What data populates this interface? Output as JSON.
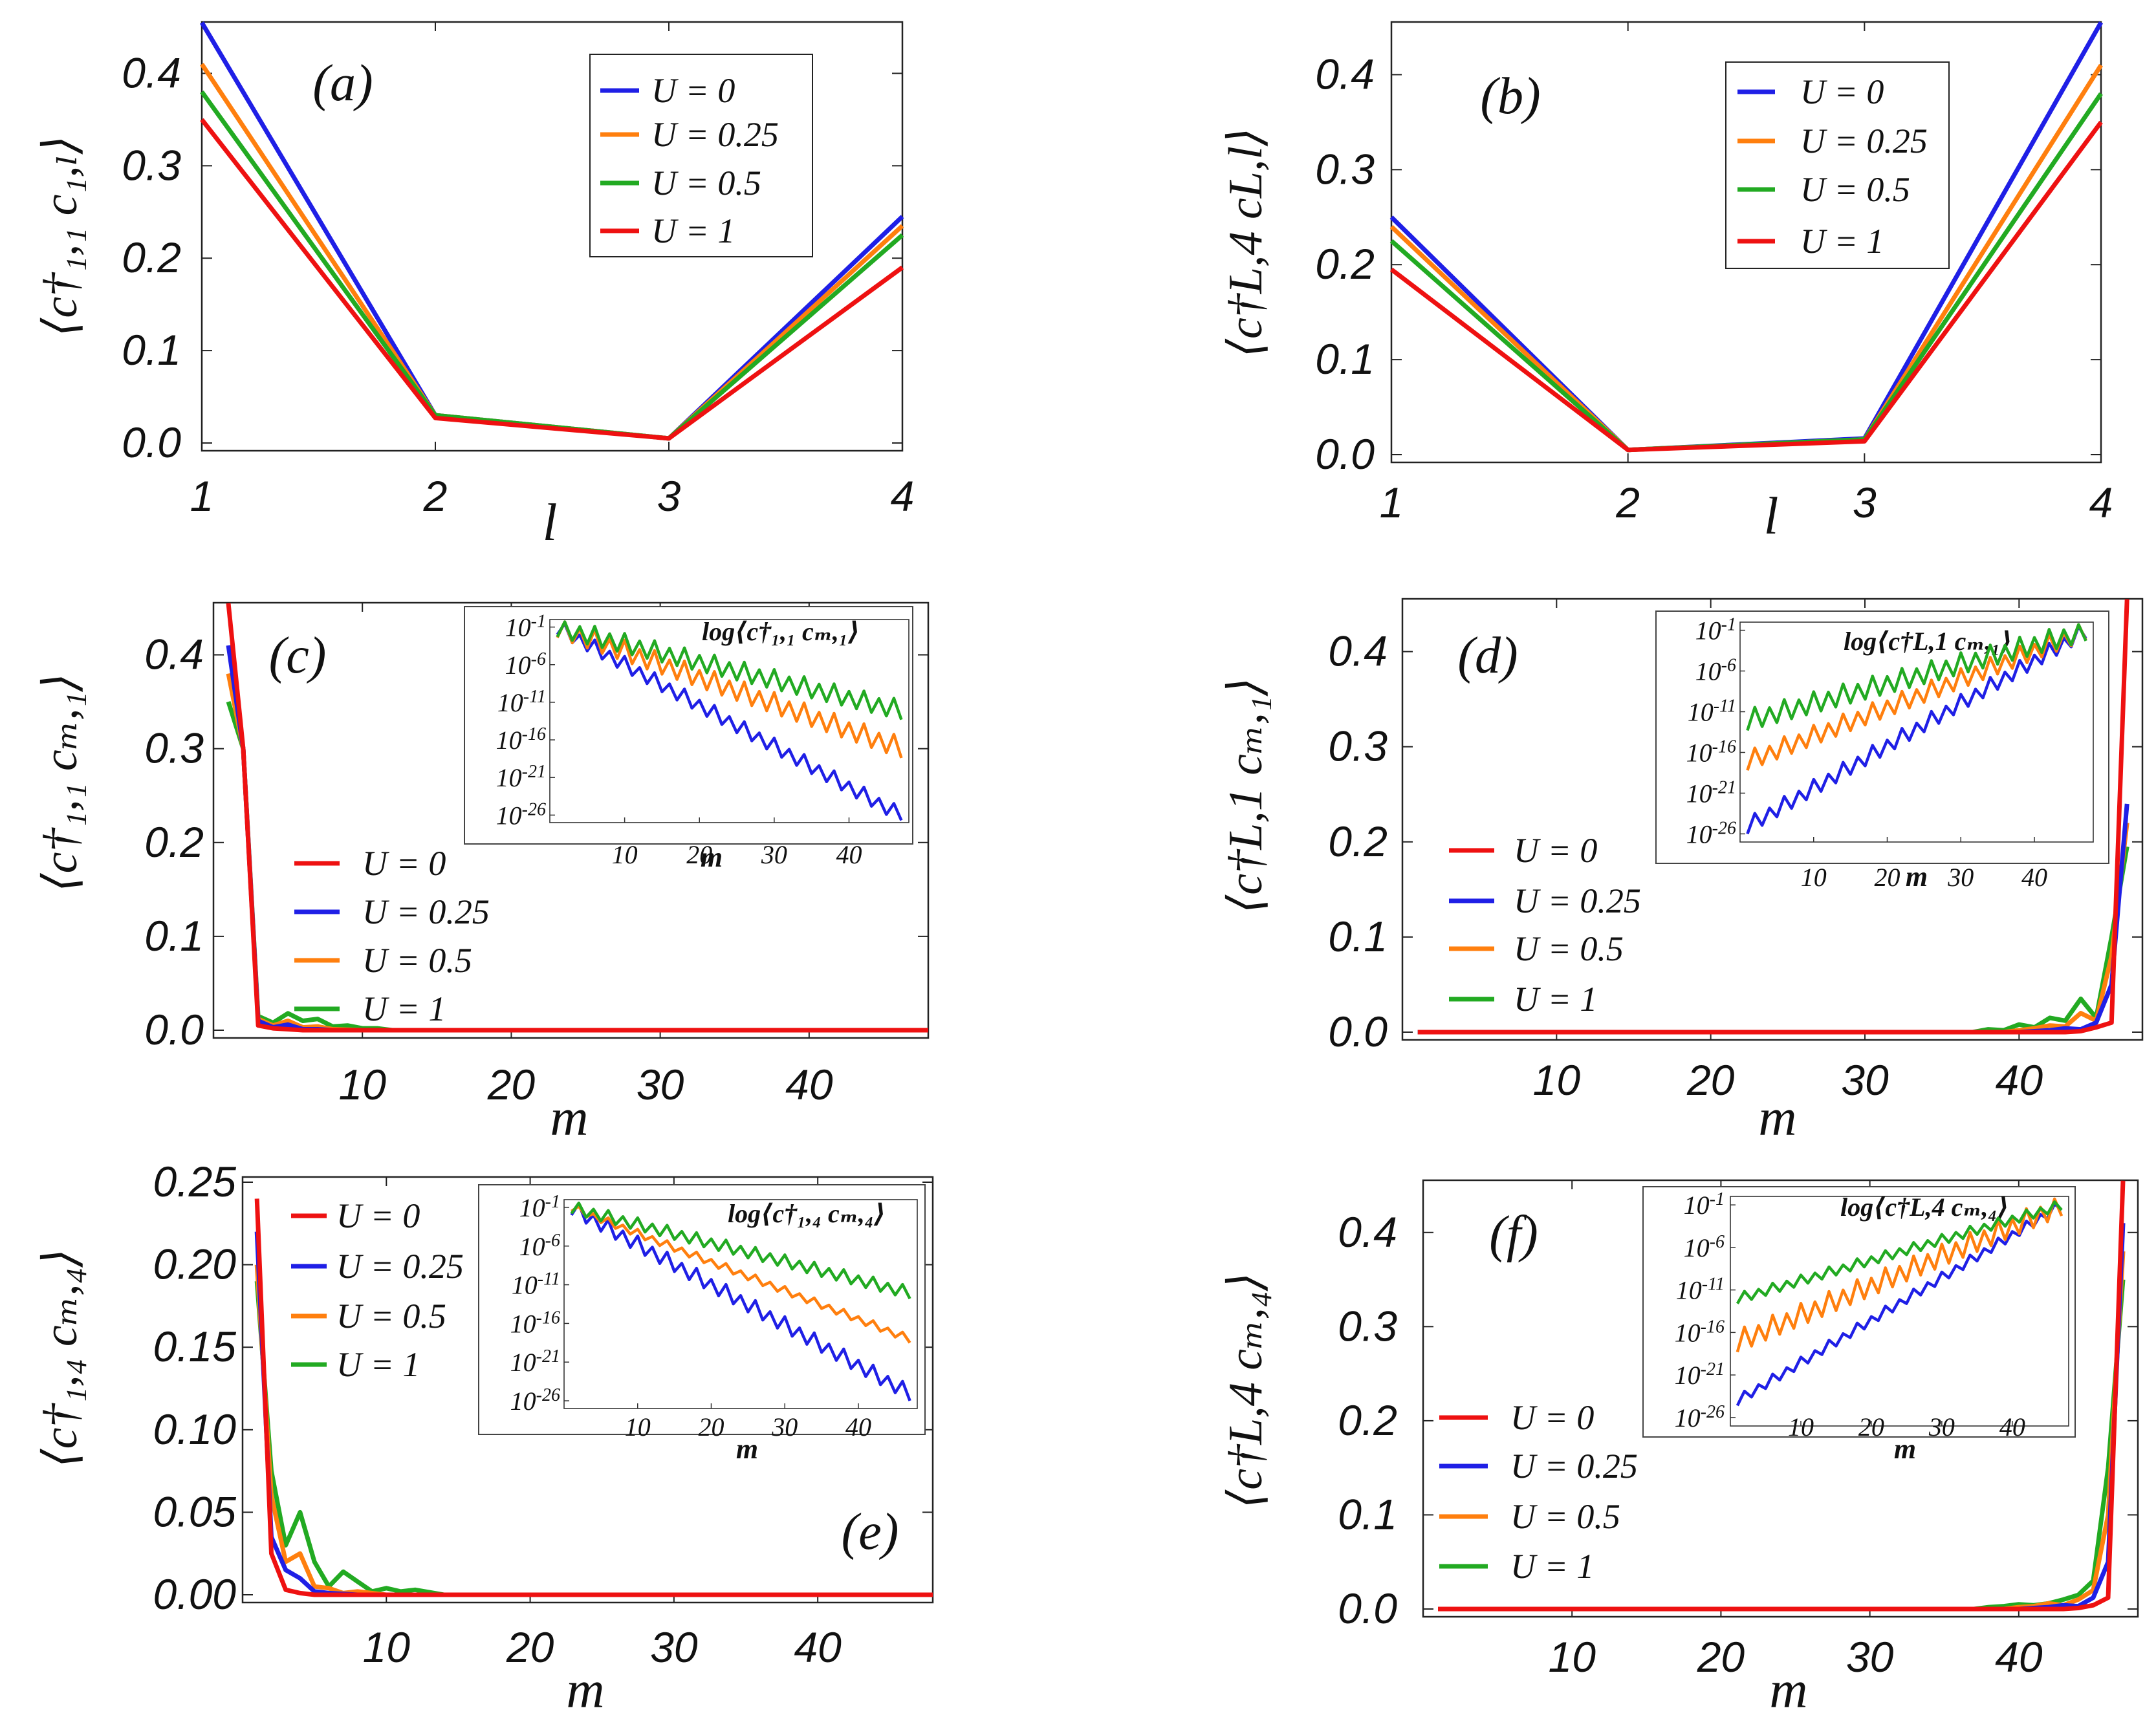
{
  "legend_colors": {
    "blue": "#1f1fe6",
    "orange": "#ff7f0e",
    "green": "#22aa22",
    "red": "#ee1111"
  },
  "chart_data": [
    {
      "id": "a",
      "type": "line",
      "panel_label": "(a)",
      "xlabel": "l",
      "ylabel": "⟨c†₁,₁ c₁,ₗ⟩",
      "xlim": [
        1,
        4
      ],
      "ylim": [
        0,
        0.45
      ],
      "xticks": [
        "1",
        "2",
        "3",
        "4"
      ],
      "yticks": [
        "0.0",
        "0.1",
        "0.2",
        "0.3",
        "0.4"
      ],
      "x": [
        1,
        2,
        3,
        4
      ],
      "series": [
        {
          "name": "U = 0",
          "color": "#1f1fe6",
          "values": [
            0.455,
            0.03,
            0.005,
            0.245
          ]
        },
        {
          "name": "U = 0.25",
          "color": "#ff7f0e",
          "values": [
            0.41,
            0.03,
            0.005,
            0.235
          ]
        },
        {
          "name": "U = 0.5",
          "color": "#22aa22",
          "values": [
            0.38,
            0.03,
            0.005,
            0.225
          ]
        },
        {
          "name": "U = 1",
          "color": "#ee1111",
          "values": [
            0.35,
            0.027,
            0.005,
            0.19
          ]
        }
      ],
      "legend_position": "top-right"
    },
    {
      "id": "b",
      "type": "line",
      "panel_label": "(b)",
      "xlabel": "l",
      "ylabel": "⟨c†L,4 cL,l⟩",
      "xlim": [
        1,
        4
      ],
      "ylim": [
        0,
        0.45
      ],
      "xticks": [
        "1",
        "2",
        "3",
        "4"
      ],
      "yticks": [
        "0.0",
        "0.1",
        "0.2",
        "0.3",
        "0.4"
      ],
      "x": [
        1,
        2,
        3,
        4
      ],
      "series": [
        {
          "name": "U = 0",
          "color": "#1f1fe6",
          "values": [
            0.25,
            0.005,
            0.017,
            0.455
          ]
        },
        {
          "name": "U = 0.25",
          "color": "#ff7f0e",
          "values": [
            0.24,
            0.005,
            0.016,
            0.41
          ]
        },
        {
          "name": "U = 0.5",
          "color": "#22aa22",
          "values": [
            0.225,
            0.005,
            0.016,
            0.38
          ]
        },
        {
          "name": "U = 1",
          "color": "#ee1111",
          "values": [
            0.195,
            0.005,
            0.014,
            0.35
          ]
        }
      ],
      "legend_position": "top-center"
    },
    {
      "id": "c",
      "type": "line",
      "panel_label": "(c)",
      "xlabel": "m",
      "ylabel": "⟨c†₁,₁ cₘ,₁⟩",
      "xlim": [
        0,
        48
      ],
      "ylim": [
        0,
        0.45
      ],
      "xticks": [
        "10",
        "20",
        "30",
        "40"
      ],
      "yticks": [
        "0.0",
        "0.1",
        "0.2",
        "0.3",
        "0.4"
      ],
      "series": [
        {
          "name": "U = 0",
          "color": "#ee1111",
          "x": [
            1,
            2,
            3,
            4,
            5,
            6,
            8,
            48
          ],
          "values": [
            0.455,
            0.3,
            0.005,
            0.002,
            0.001,
            0.0,
            0.0,
            0.0
          ]
        },
        {
          "name": "U = 0.25",
          "color": "#1f1fe6",
          "x": [
            1,
            2,
            3,
            4,
            5,
            6,
            7,
            8,
            10,
            48
          ],
          "values": [
            0.41,
            0.3,
            0.01,
            0.003,
            0.006,
            0.001,
            0.001,
            0.0,
            0.0,
            0.0
          ]
        },
        {
          "name": "U = 0.5",
          "color": "#ff7f0e",
          "x": [
            1,
            2,
            3,
            4,
            5,
            6,
            7,
            8,
            10,
            48
          ],
          "values": [
            0.38,
            0.3,
            0.012,
            0.005,
            0.01,
            0.003,
            0.004,
            0.001,
            0.0,
            0.0
          ]
        },
        {
          "name": "U = 1",
          "color": "#22aa22",
          "x": [
            1,
            2,
            3,
            4,
            5,
            6,
            7,
            8,
            9,
            10,
            11,
            12,
            48
          ],
          "values": [
            0.35,
            0.3,
            0.015,
            0.008,
            0.018,
            0.01,
            0.012,
            0.004,
            0.005,
            0.002,
            0.002,
            0.0,
            0.0
          ]
        }
      ],
      "legend_position": "center-left",
      "inset": {
        "title": "log⟨c†₁,₁ cₘ,₁⟩",
        "xlabel": "m",
        "xlim": [
          0,
          48
        ],
        "ylim": [
          -27,
          0
        ],
        "xticks": [
          "10",
          "20",
          "30",
          "40"
        ],
        "yticks": [
          "10-1",
          "10-6",
          "10-11",
          "10-16",
          "10-21",
          "10-26"
        ],
        "series": [
          {
            "name": "U = 0",
            "color": "#1f1fe6",
            "start": -1,
            "end": -26,
            "wiggle": 1.0
          },
          {
            "name": "U = 0.25",
            "color": "#ff7f0e",
            "start": -1,
            "end": -17,
            "wiggle": 1.4
          },
          {
            "name": "U = 0.5",
            "color": "#22aa22",
            "start": -1,
            "end": -12,
            "wiggle": 1.3
          }
        ]
      }
    },
    {
      "id": "d",
      "type": "line",
      "panel_label": "(d)",
      "xlabel": "m",
      "ylabel": "⟨c†L,1 cₘ,₁⟩",
      "xlim": [
        0,
        48
      ],
      "ylim": [
        0,
        0.45
      ],
      "xticks": [
        "10",
        "20",
        "30",
        "40"
      ],
      "yticks": [
        "0.0",
        "0.1",
        "0.2",
        "0.3",
        "0.4"
      ],
      "series": [
        {
          "name": "U = 0",
          "color": "#ee1111",
          "x": [
            1,
            43,
            44,
            45,
            46,
            47
          ],
          "values": [
            0.0,
            0.0,
            0.001,
            0.005,
            0.01,
            0.455
          ]
        },
        {
          "name": "U = 0.25",
          "color": "#1f1fe6",
          "x": [
            1,
            40,
            41,
            42,
            43,
            44,
            45,
            46,
            47
          ],
          "values": [
            0.0,
            0.0,
            0.001,
            0.002,
            0.004,
            0.003,
            0.01,
            0.05,
            0.24
          ]
        },
        {
          "name": "U = 0.5",
          "color": "#ff7f0e",
          "x": [
            1,
            39,
            40,
            41,
            42,
            43,
            44,
            45,
            46,
            47
          ],
          "values": [
            0.0,
            0.0,
            0.002,
            0.004,
            0.007,
            0.006,
            0.02,
            0.012,
            0.08,
            0.22
          ]
        },
        {
          "name": "U = 1",
          "color": "#22aa22",
          "x": [
            1,
            37,
            38,
            39,
            40,
            41,
            42,
            43,
            44,
            45,
            46,
            47
          ],
          "values": [
            0.0,
            0.0,
            0.003,
            0.002,
            0.008,
            0.005,
            0.015,
            0.012,
            0.035,
            0.015,
            0.1,
            0.195
          ]
        }
      ],
      "legend_position": "center-left",
      "inset": {
        "title": "log⟨c†L,1 cₘ,₁⟩",
        "xlabel": "m",
        "xlim": [
          0,
          48
        ],
        "ylim": [
          -27,
          0
        ],
        "xticks": [
          "10",
          "20",
          "30",
          "40"
        ],
        "yticks": [
          "10-1",
          "10-6",
          "10-11",
          "10-16",
          "10-21",
          "10-26"
        ],
        "series": [
          {
            "name": "U = 0",
            "color": "#1f1fe6",
            "start": -25,
            "end": -1,
            "wiggle": 1.0
          },
          {
            "name": "U = 0.25",
            "color": "#ff7f0e",
            "start": -17,
            "end": -1,
            "wiggle": 1.2
          },
          {
            "name": "U = 0.5",
            "color": "#22aa22",
            "start": -12,
            "end": -1,
            "wiggle": 1.3
          }
        ]
      }
    },
    {
      "id": "e",
      "type": "line",
      "panel_label": "(e)",
      "xlabel": "m",
      "ylabel": "⟨c†₁,₄ cₘ,₄⟩",
      "xlim": [
        0,
        48
      ],
      "ylim": [
        0,
        0.25
      ],
      "xticks": [
        "10",
        "20",
        "30",
        "40"
      ],
      "yticks": [
        "0.00",
        "0.05",
        "0.10",
        "0.15",
        "0.20",
        "0.25"
      ],
      "series": [
        {
          "name": "U = 0",
          "color": "#ee1111",
          "x": [
            1,
            2,
            3,
            4,
            5,
            48
          ],
          "values": [
            0.24,
            0.025,
            0.003,
            0.001,
            0.0,
            0.0
          ]
        },
        {
          "name": "U = 0.25",
          "color": "#1f1fe6",
          "x": [
            1,
            2,
            3,
            4,
            5,
            6,
            8,
            48
          ],
          "values": [
            0.22,
            0.035,
            0.015,
            0.01,
            0.002,
            0.001,
            0.0,
            0.0
          ]
        },
        {
          "name": "U = 0.5",
          "color": "#ff7f0e",
          "x": [
            1,
            2,
            3,
            4,
            5,
            6,
            7,
            8,
            10,
            48
          ],
          "values": [
            0.2,
            0.06,
            0.02,
            0.025,
            0.005,
            0.004,
            0.001,
            0.002,
            0.0,
            0.0
          ]
        },
        {
          "name": "U = 1",
          "color": "#22aa22",
          "x": [
            1,
            2,
            3,
            4,
            5,
            6,
            7,
            8,
            9,
            10,
            11,
            12,
            14,
            48
          ],
          "values": [
            0.19,
            0.075,
            0.03,
            0.05,
            0.02,
            0.005,
            0.014,
            0.008,
            0.002,
            0.004,
            0.002,
            0.003,
            0.0,
            0.0
          ]
        }
      ],
      "legend_position": "top-left",
      "inset": {
        "title": "log⟨c†₁,₄ cₘ,₄⟩",
        "xlabel": "m",
        "xlim": [
          0,
          48
        ],
        "ylim": [
          -27,
          0
        ],
        "xticks": [
          "10",
          "20",
          "30",
          "40"
        ],
        "yticks": [
          "10-1",
          "10-6",
          "10-11",
          "10-16",
          "10-21",
          "10-26"
        ],
        "series": [
          {
            "name": "U = 0",
            "color": "#1f1fe6",
            "start": -1,
            "end": -25,
            "wiggle": 1.0
          },
          {
            "name": "U = 0.25",
            "color": "#ff7f0e",
            "start": -1,
            "end": -18,
            "wiggle": 0.5
          },
          {
            "name": "U = 0.5",
            "color": "#22aa22",
            "start": -1,
            "end": -12,
            "wiggle": 0.8
          }
        ]
      }
    },
    {
      "id": "f",
      "type": "line",
      "panel_label": "(f)",
      "xlabel": "m",
      "ylabel": "⟨c†L,4 cₘ,₄⟩",
      "xlim": [
        0,
        48
      ],
      "ylim": [
        0,
        0.45
      ],
      "xticks": [
        "10",
        "20",
        "30",
        "40"
      ],
      "yticks": [
        "0.0",
        "0.1",
        "0.2",
        "0.3",
        "0.4"
      ],
      "series": [
        {
          "name": "U = 0",
          "color": "#ee1111",
          "x": [
            1,
            43,
            44,
            45,
            46,
            47
          ],
          "values": [
            0.0,
            0.0,
            0.001,
            0.004,
            0.012,
            0.455
          ]
        },
        {
          "name": "U = 0.25",
          "color": "#1f1fe6",
          "x": [
            1,
            40,
            41,
            42,
            43,
            44,
            45,
            46,
            47
          ],
          "values": [
            0.0,
            0.0,
            0.001,
            0.002,
            0.004,
            0.003,
            0.012,
            0.05,
            0.41
          ]
        },
        {
          "name": "U = 0.5",
          "color": "#ff7f0e",
          "x": [
            1,
            39,
            40,
            41,
            42,
            43,
            44,
            45,
            46,
            47
          ],
          "values": [
            0.0,
            0.0,
            0.002,
            0.003,
            0.006,
            0.004,
            0.01,
            0.02,
            0.1,
            0.38
          ]
        },
        {
          "name": "U = 1",
          "color": "#22aa22",
          "x": [
            1,
            37,
            38,
            39,
            40,
            41,
            42,
            43,
            44,
            45,
            46,
            47
          ],
          "values": [
            0.0,
            0.0,
            0.002,
            0.003,
            0.005,
            0.004,
            0.006,
            0.01,
            0.015,
            0.03,
            0.15,
            0.35
          ]
        }
      ],
      "legend_position": "bottom-left",
      "inset": {
        "title": "log⟨c†L,4 cₘ,₄⟩",
        "xlabel": "m",
        "xlim": [
          0,
          48
        ],
        "ylim": [
          -27,
          0
        ],
        "xticks": [
          "10",
          "20",
          "30",
          "40"
        ],
        "yticks": [
          "10-1",
          "10-6",
          "10-11",
          "10-16",
          "10-21",
          "10-26"
        ],
        "series": [
          {
            "name": "U = 0",
            "color": "#1f1fe6",
            "start": -24,
            "end": -1,
            "wiggle": 0.6
          },
          {
            "name": "U = 0.25",
            "color": "#ff7f0e",
            "start": -17,
            "end": -1,
            "wiggle": 1.3
          },
          {
            "name": "U = 0.5",
            "color": "#22aa22",
            "start": -12,
            "end": -1,
            "wiggle": 0.6
          }
        ]
      }
    }
  ]
}
